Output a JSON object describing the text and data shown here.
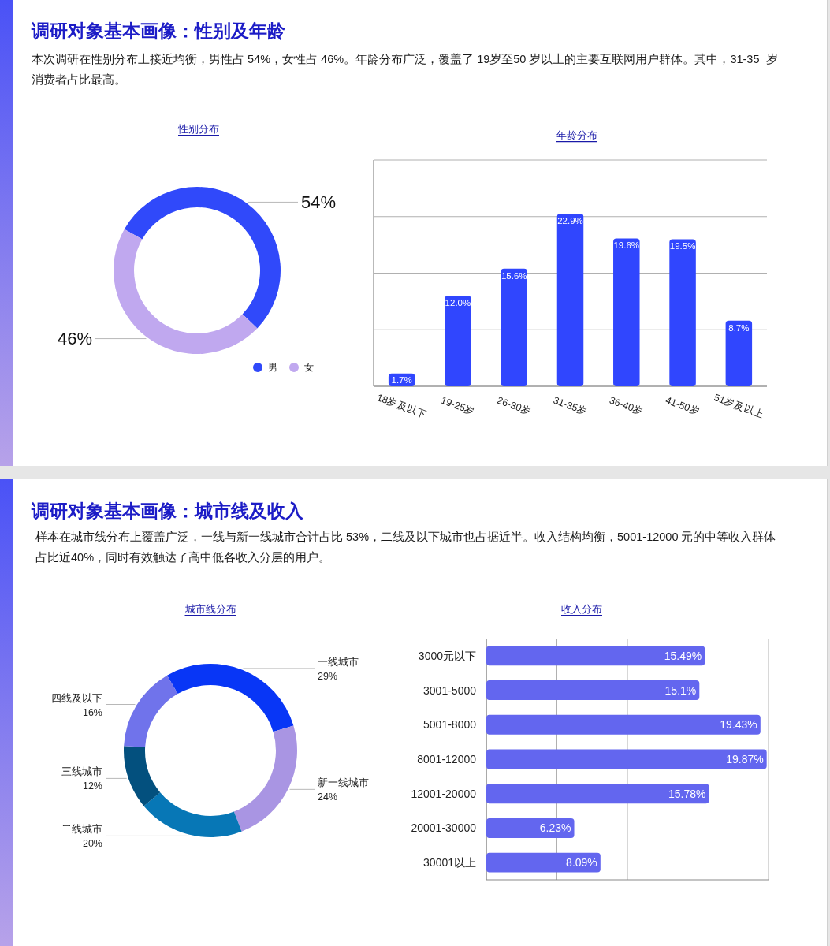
{
  "chart_data": [
    {
      "type": "other",
      "title": "调研对象基本画像：性别及年龄",
      "subtitle": "本次调研在性别分布上接近均衡，男性占 54%，女性占 46%。年龄分布广泛，覆盖了 19岁至50 岁以上的主要互联网用户群体。其中，31-35  岁消费者占比最高。"
    },
    {
      "type": "donut",
      "title": "性别分布",
      "categories": [
        "男",
        "女"
      ],
      "values": [
        54,
        46
      ],
      "colors": [
        "#3049fa",
        "#c0a8ef"
      ],
      "value_labels": [
        "54%",
        "46%"
      ],
      "legend": "bottom right"
    },
    {
      "type": "bar",
      "title": "年龄分布",
      "categories": [
        "18岁及以下",
        "19-25岁",
        "26-30岁",
        "31-35岁",
        "36-40岁",
        "41-50岁",
        "51岁及以上"
      ],
      "values": [
        1.7,
        12.0,
        15.6,
        22.9,
        19.6,
        19.5,
        8.7
      ],
      "color": "#3046fe",
      "value_labels": [
        "1.7%",
        "12.0%",
        "15.6%",
        "22.9%",
        "19.6%",
        "19.5%",
        "8.7%"
      ],
      "ylim": [
        0,
        30
      ],
      "yticks": [
        {
          "value": 0,
          "label": null
        },
        {
          "value": 7.5,
          "label": null
        },
        {
          "value": 15,
          "label": null
        },
        {
          "value": 22.5,
          "label": null
        },
        {
          "value": 30,
          "label": null
        }
      ],
      "grid": "y",
      "tick_labels": "x"
    },
    {
      "type": "other",
      "title": "调研对象基本画像：城市线及收入",
      "subtitle": "样本在城市线分布上覆盖广泛，一线与新一线城市合计占比 53%，二线及以下城市也占据近半。收入结构均衡，5001-12000 元的中等收入群体占比近40%，同时有效触达了高中低各收入分层的用户。"
    },
    {
      "type": "donut",
      "title": "城市线分布",
      "categories": [
        "一线城市",
        "新一线城市",
        "二线城市",
        "三线城市",
        "四线及以下"
      ],
      "values": [
        29,
        24,
        20,
        12,
        16
      ],
      "colors": [
        "#0836f6",
        "#a995e3",
        "#0777b6",
        "#03507e",
        "#7073eb"
      ],
      "value_labels": [
        "29%",
        "24%",
        "20%",
        "12%",
        "16%"
      ]
    },
    {
      "type": "bar",
      "orientation": "horizontal",
      "title": "收入分布",
      "categories": [
        "3000元以下",
        "3001-5000",
        "5001-8000",
        "8001-12000",
        "12001-20000",
        "20001-30000",
        "30001以上"
      ],
      "values": [
        15.49,
        15.1,
        19.43,
        19.87,
        15.78,
        6.23,
        8.09
      ],
      "color": "#6366ef",
      "value_labels": [
        "15.49%",
        "15.1%",
        "19.43%",
        "19.87%",
        "15.78%",
        "6.23%",
        "8.09%"
      ],
      "xlim": [
        0,
        20
      ],
      "xticks": [
        {
          "value": 0,
          "label": null
        },
        {
          "value": 5,
          "label": null
        },
        {
          "value": 10,
          "label": null
        },
        {
          "value": 15,
          "label": null
        },
        {
          "value": 20,
          "label": null
        }
      ],
      "grid": "x",
      "tick_labels": "y"
    }
  ]
}
